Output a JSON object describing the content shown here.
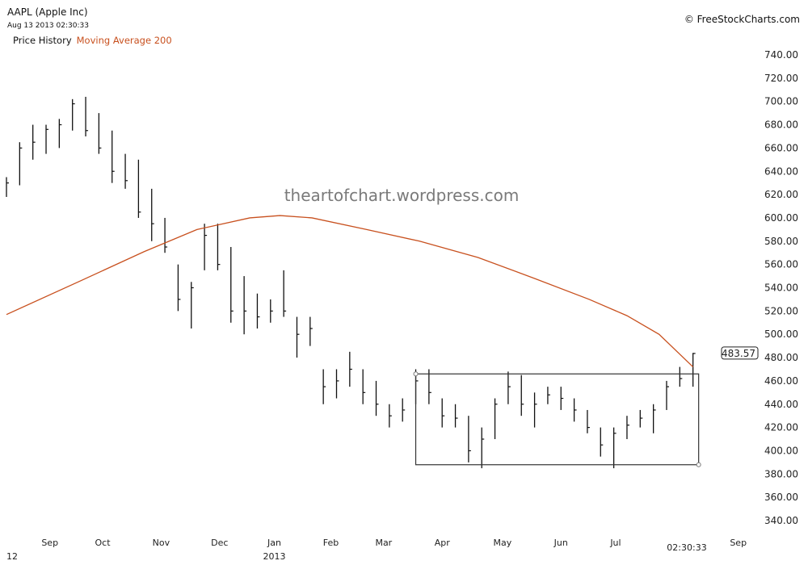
{
  "header": {
    "title": "AAPL (Apple Inc)",
    "timestamp": "Aug 13 2013 02:30:33",
    "legend_price": "Price History",
    "legend_ma": "Moving Average 200",
    "copyright": "© FreeStockCharts.com",
    "watermark": "theartofchart.wordpress.com"
  },
  "colors": {
    "price": "#111111",
    "ma": "#c8501e",
    "box": "#333333"
  },
  "chart_data": {
    "type": "ohlc-bar",
    "ylim": [
      340,
      740
    ],
    "y_ticks": [
      "340.00",
      "360.00",
      "380.00",
      "400.00",
      "420.00",
      "440.00",
      "460.00",
      "480.00",
      "500.00",
      "520.00",
      "540.00",
      "560.00",
      "580.00",
      "600.00",
      "620.00",
      "640.00",
      "660.00",
      "680.00",
      "700.00",
      "720.00",
      "740.00"
    ],
    "x_ticks": [
      {
        "label": "Sep",
        "date": "2012-09-05"
      },
      {
        "label": "Oct",
        "date": "2012-10-03"
      },
      {
        "label": "Nov",
        "date": "2012-11-03"
      },
      {
        "label": "Dec",
        "date": "2012-12-04"
      },
      {
        "label": "Jan",
        "date": "2013-01-02"
      },
      {
        "label": "Feb",
        "date": "2013-02-01"
      },
      {
        "label": "Mar",
        "date": "2013-03-01"
      },
      {
        "label": "Apr",
        "date": "2013-04-01"
      },
      {
        "label": "May",
        "date": "2013-05-03"
      },
      {
        "label": "Jun",
        "date": "2013-06-03"
      },
      {
        "label": "Jul",
        "date": "2013-07-02"
      },
      {
        "label": "Sep",
        "date": "2013-09-05"
      }
    ],
    "x_year_labels": [
      {
        "label": "12",
        "date": "2012-08-15"
      },
      {
        "label": "2013",
        "date": "2013-01-02"
      }
    ],
    "x_time_label": "02:30:33",
    "last_price": "483.57",
    "bars": [
      [
        "2012-08-13",
        635,
        618,
        630
      ],
      [
        "2012-08-20",
        665,
        628,
        660
      ],
      [
        "2012-08-27",
        680,
        650,
        665
      ],
      [
        "2012-09-03",
        680,
        655,
        676
      ],
      [
        "2012-09-10",
        685,
        660,
        680
      ],
      [
        "2012-09-17",
        702,
        675,
        698
      ],
      [
        "2012-09-24",
        704,
        670,
        675
      ],
      [
        "2012-10-01",
        690,
        655,
        660
      ],
      [
        "2012-10-08",
        675,
        630,
        640
      ],
      [
        "2012-10-15",
        655,
        625,
        632
      ],
      [
        "2012-10-22",
        650,
        600,
        605
      ],
      [
        "2012-10-29",
        625,
        580,
        595
      ],
      [
        "2012-11-05",
        600,
        570,
        575
      ],
      [
        "2012-11-12",
        560,
        520,
        530
      ],
      [
        "2012-11-19",
        545,
        505,
        540
      ],
      [
        "2012-11-26",
        595,
        555,
        585
      ],
      [
        "2012-12-03",
        595,
        555,
        560
      ],
      [
        "2012-12-10",
        575,
        510,
        520
      ],
      [
        "2012-12-17",
        550,
        500,
        520
      ],
      [
        "2012-12-24",
        535,
        505,
        515
      ],
      [
        "2012-12-31",
        530,
        510,
        520
      ],
      [
        "2013-01-07",
        555,
        515,
        520
      ],
      [
        "2013-01-14",
        515,
        480,
        500
      ],
      [
        "2013-01-21",
        515,
        490,
        505
      ],
      [
        "2013-01-28",
        470,
        440,
        455
      ],
      [
        "2013-02-04",
        470,
        445,
        460
      ],
      [
        "2013-02-11",
        485,
        455,
        470
      ],
      [
        "2013-02-18",
        470,
        440,
        450
      ],
      [
        "2013-02-25",
        460,
        430,
        440
      ],
      [
        "2013-03-04",
        440,
        420,
        430
      ],
      [
        "2013-03-11",
        445,
        425,
        435
      ],
      [
        "2013-03-18",
        470,
        440,
        460
      ],
      [
        "2013-03-25",
        470,
        440,
        450
      ],
      [
        "2013-04-01",
        445,
        420,
        430
      ],
      [
        "2013-04-08",
        440,
        420,
        428
      ],
      [
        "2013-04-15",
        430,
        390,
        400
      ],
      [
        "2013-04-22",
        420,
        385,
        410
      ],
      [
        "2013-04-29",
        445,
        410,
        440
      ],
      [
        "2013-05-06",
        468,
        440,
        455
      ],
      [
        "2013-05-13",
        465,
        430,
        440
      ],
      [
        "2013-05-20",
        450,
        420,
        440
      ],
      [
        "2013-05-27",
        455,
        440,
        448
      ],
      [
        "2013-06-03",
        455,
        435,
        445
      ],
      [
        "2013-06-10",
        445,
        425,
        435
      ],
      [
        "2013-06-17",
        435,
        415,
        420
      ],
      [
        "2013-06-24",
        420,
        395,
        405
      ],
      [
        "2013-07-01",
        420,
        385,
        415
      ],
      [
        "2013-07-08",
        430,
        410,
        422
      ],
      [
        "2013-07-15",
        435,
        420,
        428
      ],
      [
        "2013-07-22",
        440,
        415,
        435
      ],
      [
        "2013-07-29",
        460,
        435,
        455
      ],
      [
        "2013-08-05",
        472,
        455,
        462
      ],
      [
        "2013-08-12",
        484,
        455,
        483.57
      ]
    ],
    "series": [
      {
        "name": "Moving Average 200",
        "points": [
          [
            "2012-08-13",
            517
          ],
          [
            "2012-09-20",
            545
          ],
          [
            "2012-10-25",
            571
          ],
          [
            "2012-11-22",
            590
          ],
          [
            "2012-12-20",
            600
          ],
          [
            "2013-01-05",
            602
          ],
          [
            "2013-01-22",
            600
          ],
          [
            "2013-02-20",
            590
          ],
          [
            "2013-03-20",
            580
          ],
          [
            "2013-04-20",
            566
          ],
          [
            "2013-05-20",
            548
          ],
          [
            "2013-06-18",
            530
          ],
          [
            "2013-07-08",
            516
          ],
          [
            "2013-07-25",
            500
          ],
          [
            "2013-08-12",
            472
          ]
        ]
      }
    ],
    "annotations": [
      {
        "type": "rectangle",
        "from": "2013-03-18",
        "to": "2013-08-15",
        "top": 466,
        "bottom": 388
      }
    ]
  }
}
